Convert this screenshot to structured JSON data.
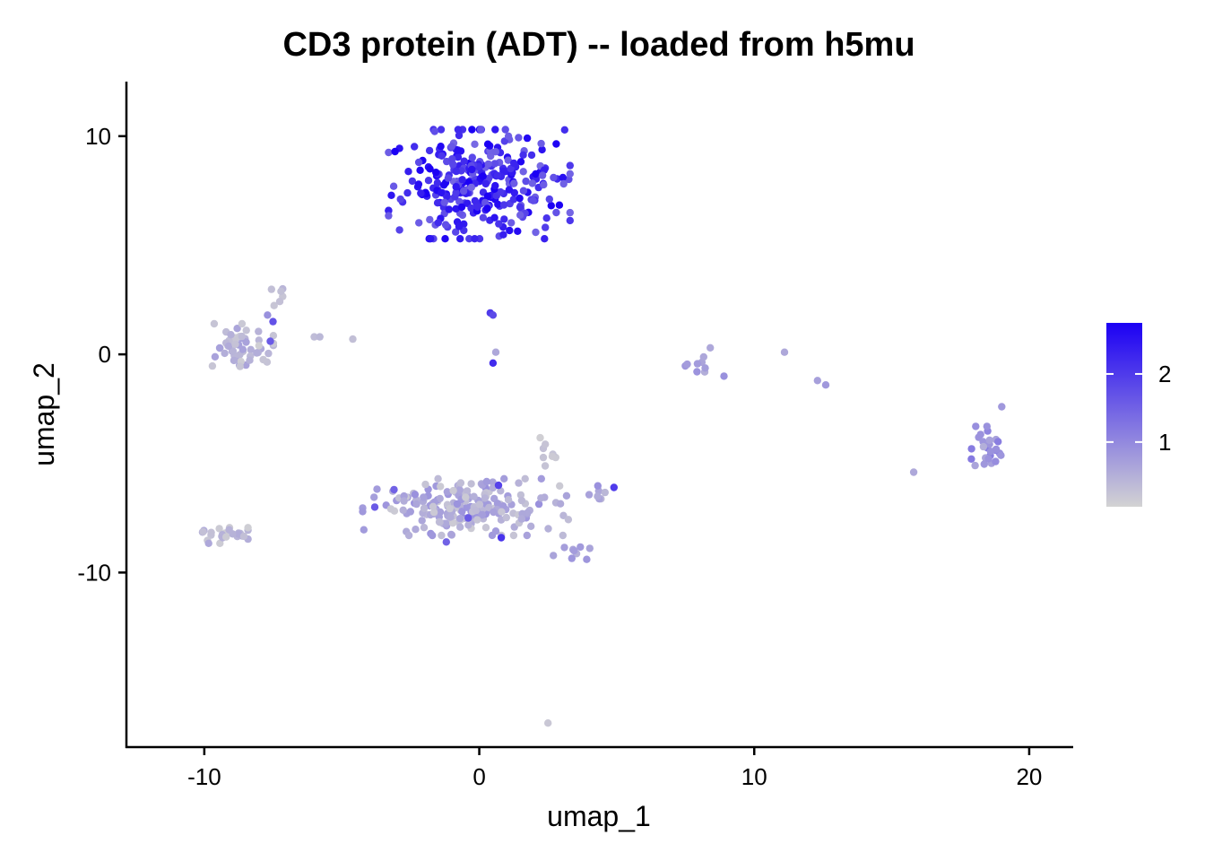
{
  "chart_data": {
    "type": "scatter",
    "title": "CD3 protein (ADT) -- loaded from h5mu",
    "xlabel": "umap_1",
    "ylabel": "umap_2",
    "xlim": [
      -12.8,
      21.6
    ],
    "ylim": [
      -18.0,
      12.5
    ],
    "xticks": [
      -10,
      0,
      10,
      20
    ],
    "xtick_labels": [
      "-10",
      "0",
      "10",
      "20"
    ],
    "yticks": [
      -10,
      0,
      10
    ],
    "ytick_labels": [
      "-10",
      "0",
      "10"
    ],
    "grid": false,
    "legend": {
      "placement": "right",
      "type": "colorbar",
      "range": [
        0.05,
        2.75
      ],
      "ticks": [
        1,
        2
      ],
      "tick_labels": [
        "1",
        "2"
      ],
      "color_low": "#d3d3d3",
      "color_high": "#1c00f4"
    },
    "clusters": [
      {
        "cx": 0.0,
        "cy": 7.8,
        "sx": 1.5,
        "sy": 1.25,
        "n": 300,
        "vmin": 1.4,
        "vmax": 2.8
      },
      {
        "cx": -8.7,
        "cy": 0.4,
        "sx": 0.55,
        "sy": 0.5,
        "n": 55,
        "vmin": 0.1,
        "vmax": 0.7
      },
      {
        "cx": -0.5,
        "cy": -7.0,
        "sx": 1.7,
        "sy": 0.65,
        "n": 200,
        "vmin": 0.15,
        "vmax": 0.9
      },
      {
        "cx": -9.4,
        "cy": -8.3,
        "sx": 0.45,
        "sy": 0.18,
        "n": 26,
        "vmin": 0.1,
        "vmax": 0.6
      },
      {
        "cx": 18.5,
        "cy": -4.4,
        "sx": 0.3,
        "sy": 0.55,
        "n": 26,
        "vmin": 0.5,
        "vmax": 1.2
      },
      {
        "cx": 8.0,
        "cy": -0.6,
        "sx": 0.25,
        "sy": 0.25,
        "n": 8,
        "vmin": 0.5,
        "vmax": 0.9
      },
      {
        "cx": 2.3,
        "cy": -4.4,
        "sx": 0.22,
        "sy": 0.4,
        "n": 8,
        "vmin": 0.05,
        "vmax": 0.3
      },
      {
        "cx": 3.6,
        "cy": -8.9,
        "sx": 0.5,
        "sy": 0.5,
        "n": 9,
        "vmin": 0.5,
        "vmax": 0.9
      },
      {
        "cx": 4.2,
        "cy": -6.5,
        "sx": 0.55,
        "sy": 0.25,
        "n": 8,
        "vmin": 0.4,
        "vmax": 1.0
      },
      {
        "cx": -7.3,
        "cy": 2.6,
        "sx": 0.25,
        "sy": 0.2,
        "n": 6,
        "vmin": 0.2,
        "vmax": 0.5
      }
    ],
    "points": [
      {
        "x": 0.4,
        "y": 1.9,
        "v": 2.0
      },
      {
        "x": 0.5,
        "y": 1.8,
        "v": 1.8
      },
      {
        "x": 0.6,
        "y": 0.1,
        "v": 0.6
      },
      {
        "x": 0.5,
        "y": -0.4,
        "v": 2.2
      },
      {
        "x": -4.6,
        "y": 0.7,
        "v": 0.3
      },
      {
        "x": -6.0,
        "y": 0.8,
        "v": 0.35
      },
      {
        "x": -5.8,
        "y": 0.8,
        "v": 0.4
      },
      {
        "x": -7.5,
        "y": 1.5,
        "v": 1.7
      },
      {
        "x": -7.7,
        "y": 1.8,
        "v": 0.9
      },
      {
        "x": -7.6,
        "y": 0.6,
        "v": 1.6
      },
      {
        "x": 8.4,
        "y": 0.3,
        "v": 0.6
      },
      {
        "x": 8.9,
        "y": -1.0,
        "v": 0.9
      },
      {
        "x": 11.1,
        "y": 0.1,
        "v": 0.6
      },
      {
        "x": 12.3,
        "y": -1.2,
        "v": 0.7
      },
      {
        "x": 12.6,
        "y": -1.4,
        "v": 0.8
      },
      {
        "x": 15.8,
        "y": -5.4,
        "v": 0.6
      },
      {
        "x": 19.0,
        "y": -2.4,
        "v": 0.8
      },
      {
        "x": 2.5,
        "y": -16.9,
        "v": 0.2
      },
      {
        "x": 4.9,
        "y": -6.1,
        "v": 2.0
      },
      {
        "x": 0.8,
        "y": -8.4,
        "v": 2.1
      },
      {
        "x": -1.2,
        "y": -8.6,
        "v": 1.5
      },
      {
        "x": 0.7,
        "y": -6.0,
        "v": 1.9
      },
      {
        "x": -3.8,
        "y": -7.0,
        "v": 1.6
      },
      {
        "x": -3.1,
        "y": -6.2,
        "v": 1.5
      },
      {
        "x": -0.4,
        "y": -7.5,
        "v": 1.6
      },
      {
        "x": 2.7,
        "y": 8.1,
        "v": 1.7
      },
      {
        "x": 2.3,
        "y": 8.2,
        "v": 1.6
      },
      {
        "x": -2.2,
        "y": 8.8,
        "v": 1.8
      },
      {
        "x": -2.9,
        "y": 5.7,
        "v": 1.9
      },
      {
        "x": 2.8,
        "y": 6.5,
        "v": 1.7
      }
    ]
  }
}
